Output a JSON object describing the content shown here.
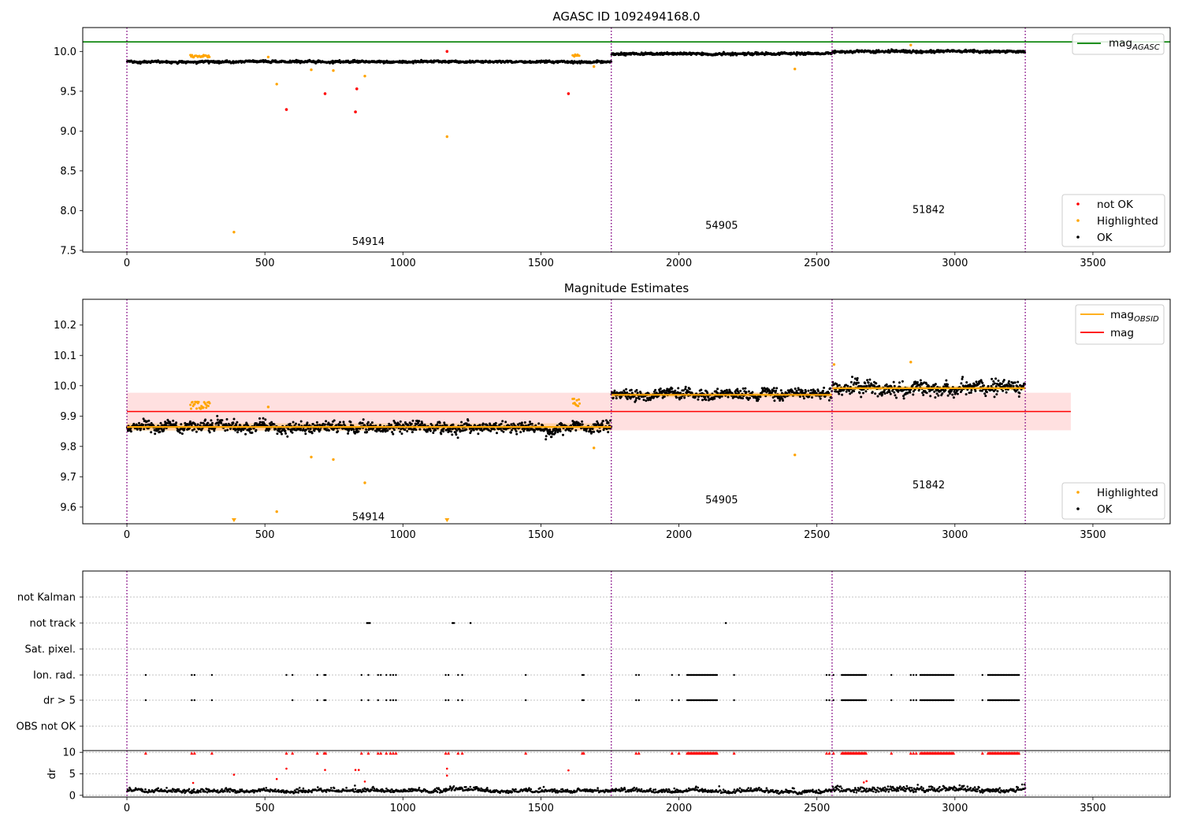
{
  "chart_data": [
    {
      "type": "scatter",
      "title": "AGASC ID 1092494168.0",
      "xlim": [
        -160,
        3780
      ],
      "ylim": [
        7.48,
        10.3
      ],
      "xticks": [
        "0",
        "500",
        "1000",
        "1500",
        "2000",
        "2500",
        "3000",
        "3500"
      ],
      "xtick_values": [
        0,
        500,
        1000,
        1500,
        2000,
        2500,
        3000,
        3500
      ],
      "yticks": [
        "7.5",
        "8.0",
        "8.5",
        "9.0",
        "9.5",
        "10.0"
      ],
      "ytick_values": [
        7.5,
        8.0,
        8.5,
        9.0,
        9.5,
        10.0
      ],
      "hline": {
        "name": "mag",
        "sub": "AGASC",
        "y": 10.12,
        "color": "#008000"
      },
      "obsid_boundaries": [
        0,
        1755,
        2555,
        3255
      ],
      "obsid_labels": [
        {
          "text": "54914",
          "x": 875,
          "y": 7.62
        },
        {
          "text": "54905",
          "x": 2155,
          "y": 7.82
        },
        {
          "text": "51842",
          "x": 2905,
          "y": 8.02
        }
      ],
      "legend_scatter": [
        {
          "label": "not OK",
          "color": "#ff0000"
        },
        {
          "label": "Highlighted",
          "color": "#ffa500"
        },
        {
          "label": "OK",
          "color": "#000000"
        }
      ],
      "ok_segments": [
        {
          "x0": 0,
          "x1": 1755,
          "mean": 9.87,
          "noise": 0.012
        },
        {
          "x0": 1755,
          "x1": 2555,
          "mean": 9.97,
          "noise": 0.012
        },
        {
          "x0": 2555,
          "x1": 3255,
          "mean": 10.0,
          "noise": 0.012
        }
      ],
      "not_ok_points": [
        {
          "x": 578,
          "y": 9.27
        },
        {
          "x": 718,
          "y": 9.47
        },
        {
          "x": 828,
          "y": 9.24
        },
        {
          "x": 833,
          "y": 9.53
        },
        {
          "x": 1160,
          "y": 10.0
        },
        {
          "x": 1600,
          "y": 9.47
        }
      ],
      "highlighted_points": [
        {
          "x": 388,
          "y": 7.73
        },
        {
          "x": 512,
          "y": 9.93
        },
        {
          "x": 543,
          "y": 9.59
        },
        {
          "x": 668,
          "y": 9.77
        },
        {
          "x": 748,
          "y": 9.76
        },
        {
          "x": 862,
          "y": 9.69
        },
        {
          "x": 1160,
          "y": 8.93
        },
        {
          "x": 1692,
          "y": 9.81
        },
        {
          "x": 2420,
          "y": 9.78
        },
        {
          "x": 2840,
          "y": 10.08
        }
      ],
      "highlight_runs": [
        {
          "x0": 230,
          "x1": 300,
          "y": 9.94
        },
        {
          "x0": 1615,
          "x1": 1640,
          "y": 9.95
        }
      ]
    },
    {
      "type": "scatter",
      "title": "Magnitude Estimates",
      "xlim": [
        -160,
        3780
      ],
      "ylim": [
        9.545,
        10.285
      ],
      "xticks": [
        "0",
        "500",
        "1000",
        "1500",
        "2000",
        "2500",
        "3000",
        "3500"
      ],
      "xtick_values": [
        0,
        500,
        1000,
        1500,
        2000,
        2500,
        3000,
        3500
      ],
      "yticks": [
        "9.6",
        "9.7",
        "9.8",
        "9.9",
        "10.0",
        "10.1",
        "10.2"
      ],
      "ytick_values": [
        9.6,
        9.7,
        9.8,
        9.9,
        10.0,
        10.1,
        10.2
      ],
      "mag_line": {
        "name": "mag",
        "y": 9.915,
        "x0": 0,
        "x1": 3420,
        "band": [
          9.853,
          9.977
        ],
        "color": "#ff0000"
      },
      "mag_obsid": [
        {
          "x0": 0,
          "x1": 1755,
          "y": 9.864,
          "band": [
            9.852,
            9.876
          ]
        },
        {
          "x0": 1755,
          "x1": 2555,
          "y": 9.97,
          "band": [
            9.962,
            9.978
          ]
        },
        {
          "x0": 2555,
          "x1": 3255,
          "y": 9.992,
          "band": [
            9.984,
            10.0
          ]
        }
      ],
      "legend_lines": [
        {
          "label": "mag",
          "sub": "OBSID",
          "color": "#ffa500"
        },
        {
          "label": "mag",
          "sub": "",
          "color": "#ff0000"
        }
      ],
      "legend_scatter": [
        {
          "label": "Highlighted",
          "color": "#ffa500"
        },
        {
          "label": "OK",
          "color": "#000000"
        }
      ],
      "obsid_boundaries": [
        0,
        1755,
        2555,
        3255
      ],
      "obsid_labels": [
        {
          "text": "54914",
          "x": 875,
          "y": 9.57
        },
        {
          "text": "54905",
          "x": 2155,
          "y": 9.625
        },
        {
          "text": "51842",
          "x": 2905,
          "y": 9.675
        }
      ],
      "ok_segments": [
        {
          "x0": 0,
          "x1": 1755,
          "mean": 9.863,
          "noise": 0.016
        },
        {
          "x0": 1755,
          "x1": 2555,
          "mean": 9.972,
          "noise": 0.016
        },
        {
          "x0": 2555,
          "x1": 3255,
          "mean": 9.993,
          "noise": 0.02
        }
      ],
      "highlighted_points": [
        {
          "x": 512,
          "y": 9.93
        },
        {
          "x": 543,
          "y": 9.585
        },
        {
          "x": 668,
          "y": 9.765
        },
        {
          "x": 748,
          "y": 9.757
        },
        {
          "x": 862,
          "y": 9.68
        },
        {
          "x": 1692,
          "y": 9.795
        },
        {
          "x": 2420,
          "y": 9.772
        },
        {
          "x": 2840,
          "y": 10.078
        },
        {
          "x": 2562,
          "y": 10.07
        }
      ],
      "highlight_runs": [
        {
          "x0": 230,
          "x1": 300,
          "y": 9.935
        },
        {
          "x0": 1615,
          "x1": 1640,
          "y": 9.945
        }
      ],
      "clipped_markers": [
        388,
        1160
      ]
    },
    {
      "type": "scatter",
      "xlim": [
        -160,
        3780
      ],
      "xticks": [
        "0",
        "500",
        "1000",
        "1500",
        "2000",
        "2500",
        "3000",
        "3500"
      ],
      "xtick_values": [
        0,
        500,
        1000,
        1500,
        2000,
        2500,
        3000,
        3500
      ],
      "flag_rows": [
        "not Kalman",
        "not track",
        "Sat. pixel.",
        "Ion. rad.",
        "dr > 5",
        "OBS not OK"
      ],
      "dr_ylabel": "dr",
      "dr_ylim": [
        -0.4,
        10.4
      ],
      "dr_yticks": [
        "0",
        "5",
        "10"
      ],
      "dr_ytick_values": [
        0,
        5,
        10
      ],
      "obsid_boundaries": [
        0,
        1755,
        2555,
        3255
      ],
      "not_track_x": [
        870,
        875,
        880,
        1180,
        1185,
        1245,
        2170
      ],
      "flag_x": [
        68,
        235,
        245,
        308,
        600,
        690,
        715,
        720,
        850,
        875,
        910,
        940,
        955,
        965,
        975,
        1155,
        1165,
        1200,
        1215,
        1445,
        1650,
        1655,
        1845,
        1855,
        1975,
        2000,
        2200,
        2535,
        2545,
        2560,
        2770,
        2840,
        2850,
        2860,
        3100
      ],
      "flag_x_denser_only_ion": [
        578,
        920
      ],
      "flag_runs": [
        {
          "x0": 2030,
          "x1": 2140
        },
        {
          "x0": 2590,
          "x1": 2680
        },
        {
          "x0": 2875,
          "x1": 2995
        },
        {
          "x0": 3120,
          "x1": 3235
        }
      ],
      "dr_outliers": [
        {
          "x": 240,
          "y": 2.9
        },
        {
          "x": 388,
          "y": 4.8
        },
        {
          "x": 543,
          "y": 3.8
        },
        {
          "x": 578,
          "y": 6.2
        },
        {
          "x": 718,
          "y": 5.9
        },
        {
          "x": 828,
          "y": 5.9
        },
        {
          "x": 840,
          "y": 5.9
        },
        {
          "x": 862,
          "y": 3.2
        },
        {
          "x": 1160,
          "y": 6.2
        },
        {
          "x": 1160,
          "y": 4.6
        },
        {
          "x": 1600,
          "y": 5.8
        },
        {
          "x": 2670,
          "y": 3.0
        },
        {
          "x": 2680,
          "y": 3.3
        }
      ]
    }
  ]
}
